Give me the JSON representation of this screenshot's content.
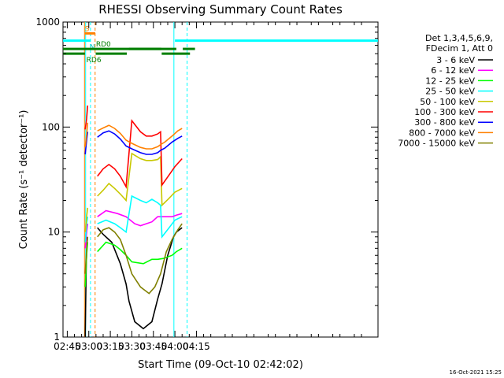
{
  "chart_data": {
    "type": "line",
    "title": "RHESSI Observing Summary Count Rates",
    "xlabel": "Start Time (09-Oct-10 02:42:02)",
    "ylabel": "Count Rate (s⁻¹ detector⁻¹)",
    "yscale": "log",
    "ylim": [
      1,
      1000
    ],
    "xlim_minutes": [
      42.03,
      261.5
    ],
    "x_ticks": [
      {
        "label": "02:45",
        "t": 45
      },
      {
        "label": "03:00",
        "t": 60
      },
      {
        "label": "03:15",
        "t": 75
      },
      {
        "label": "03:30",
        "t": 90
      },
      {
        "label": "03:45",
        "t": 105
      },
      {
        "label": "04:00",
        "t": 120
      },
      {
        "label": "04:15",
        "t": 135
      }
    ],
    "y_ticks": [
      {
        "label": "1",
        "v": 1
      },
      {
        "label": "10",
        "v": 10
      },
      {
        "label": "100",
        "v": 100
      },
      {
        "label": "1000",
        "v": 1000
      }
    ],
    "legend_header": [
      "Det 1,3,4,5,6,9,",
      "FDecim 1, Att 0"
    ],
    "legend_placement": "right",
    "series": [
      {
        "name": "3 - 6 keV",
        "color": "#000000",
        "segments": [
          [
            [
              57.5,
              1.0
            ],
            [
              58.2,
              5.0
            ],
            [
              59.0,
              9.0
            ]
          ],
          [
            [
              66.0,
              11.0
            ],
            [
              70.0,
              9.5
            ],
            [
              76.0,
              8.0
            ],
            [
              82.0,
              5.0
            ],
            [
              86.0,
              3.2
            ],
            [
              88.0,
              2.2
            ],
            [
              92.0,
              1.4
            ],
            [
              98.0,
              1.2
            ],
            [
              104.0,
              1.4
            ],
            [
              108.0,
              2.3
            ],
            [
              111.0,
              3.2
            ],
            [
              115.0,
              6.0
            ],
            [
              119.0,
              9.0
            ],
            [
              121.0,
              10.0
            ],
            [
              125.0,
              11.0
            ]
          ]
        ]
      },
      {
        "name": "6 - 12 keV",
        "color": "#ff00ff",
        "segments": [
          [
            [
              57.5,
              7.0
            ],
            [
              58.5,
              10.0
            ],
            [
              59.2,
              12.0
            ]
          ],
          [
            [
              66.0,
              14.0
            ],
            [
              72.0,
              16.0
            ],
            [
              80.0,
              15.0
            ],
            [
              86.0,
              14.0
            ],
            [
              92.0,
              12.0
            ],
            [
              96.0,
              11.5
            ],
            [
              100.0,
              12.0
            ],
            [
              104.0,
              12.5
            ],
            [
              108.0,
              14.0
            ],
            [
              112.0,
              14.0
            ],
            [
              118.0,
              14.0
            ],
            [
              121.0,
              14.5
            ],
            [
              125.0,
              15.0
            ]
          ]
        ]
      },
      {
        "name": "12 - 25 keV",
        "color": "#00ff00",
        "segments": [
          [
            [
              57.5,
              3.0
            ],
            [
              58.5,
              6.0
            ],
            [
              59.2,
              8.0
            ]
          ],
          [
            [
              66.0,
              6.5
            ],
            [
              72.0,
              8.0
            ],
            [
              78.0,
              7.5
            ],
            [
              82.0,
              6.8
            ],
            [
              86.0,
              6.0
            ],
            [
              90.0,
              5.2
            ],
            [
              98.0,
              5.0
            ],
            [
              104.0,
              5.5
            ],
            [
              108.0,
              5.5
            ],
            [
              112.0,
              5.6
            ],
            [
              118.0,
              6.0
            ],
            [
              121.0,
              6.5
            ],
            [
              125.0,
              7.0
            ]
          ]
        ]
      },
      {
        "name": "25 - 50 keV",
        "color": "#00ffff",
        "segments": [
          [
            [
              57.5,
              8.0
            ],
            [
              58.5,
              12.0
            ],
            [
              59.2,
              14.0
            ]
          ],
          [
            [
              66.0,
              12.0
            ],
            [
              72.0,
              13.0
            ],
            [
              78.0,
              12.0
            ],
            [
              82.0,
              11.0
            ],
            [
              86.0,
              10.0
            ],
            [
              90.0,
              22.0
            ],
            [
              96.0,
              20.0
            ],
            [
              100.0,
              19.0
            ],
            [
              104.0,
              20.5
            ],
            [
              108.0,
              19.0
            ],
            [
              110.0,
              18.0
            ],
            [
              111.0,
              9.0
            ],
            [
              116.0,
              11.0
            ],
            [
              120.0,
              13.0
            ],
            [
              125.0,
              14.0
            ]
          ]
        ]
      },
      {
        "name": "50 - 100 keV",
        "color": "#c8c800",
        "segments": [
          [
            [
              57.5,
              10.0
            ],
            [
              58.5,
              14.0
            ],
            [
              59.2,
              17.0
            ]
          ],
          [
            [
              66.0,
              22.0
            ],
            [
              70.0,
              25.0
            ],
            [
              74.0,
              29.0
            ],
            [
              78.0,
              26.0
            ],
            [
              82.0,
              23.0
            ],
            [
              86.0,
              20.0
            ],
            [
              90.0,
              56.0
            ],
            [
              96.0,
              50.0
            ],
            [
              100.0,
              48.0
            ],
            [
              104.0,
              48.0
            ],
            [
              108.0,
              49.0
            ],
            [
              110.0,
              52.0
            ],
            [
              111.0,
              18.0
            ],
            [
              116.0,
              21.0
            ],
            [
              120.0,
              24.0
            ],
            [
              125.0,
              26.0
            ]
          ]
        ]
      },
      {
        "name": "100 - 300 keV",
        "color": "#ff0000",
        "segments": [
          [
            [
              57.5,
              95.0
            ],
            [
              58.5,
              120.0
            ],
            [
              59.2,
              160.0
            ]
          ],
          [
            [
              66.0,
              34.0
            ],
            [
              70.0,
              40.0
            ],
            [
              74.0,
              44.0
            ],
            [
              78.0,
              40.0
            ],
            [
              82.0,
              34.0
            ],
            [
              86.0,
              27.0
            ],
            [
              90.0,
              115.0
            ],
            [
              96.0,
              90.0
            ],
            [
              100.0,
              82.0
            ],
            [
              104.0,
              82.0
            ],
            [
              108.0,
              86.0
            ],
            [
              110.0,
              90.0
            ],
            [
              111.0,
              28.0
            ],
            [
              116.0,
              35.0
            ],
            [
              120.0,
              42.0
            ],
            [
              125.0,
              50.0
            ]
          ]
        ]
      },
      {
        "name": "300 - 800 keV",
        "color": "#0000ff",
        "segments": [
          [
            [
              57.5,
              55.0
            ],
            [
              58.5,
              75.0
            ],
            [
              59.2,
              90.0
            ]
          ],
          [
            [
              66.0,
              80.0
            ],
            [
              70.0,
              88.0
            ],
            [
              74.0,
              92.0
            ],
            [
              78.0,
              86.0
            ],
            [
              82.0,
              77.0
            ],
            [
              86.0,
              66.0
            ],
            [
              90.0,
              62.0
            ],
            [
              96.0,
              57.0
            ],
            [
              100.0,
              55.0
            ],
            [
              104.0,
              55.0
            ],
            [
              108.0,
              57.0
            ],
            [
              110.0,
              60.0
            ],
            [
              113.0,
              63.0
            ],
            [
              118.0,
              72.0
            ],
            [
              122.0,
              78.0
            ],
            [
              125.0,
              82.0
            ]
          ]
        ]
      },
      {
        "name": "800 - 7000 keV",
        "color": "#ff8000",
        "segments": [
          [
            [
              57.5,
              65.0
            ],
            [
              58.5,
              85.0
            ],
            [
              59.2,
              110.0
            ]
          ],
          [
            [
              66.0,
              92.0
            ],
            [
              70.0,
              98.0
            ],
            [
              74.0,
              104.0
            ],
            [
              78.0,
              97.0
            ],
            [
              82.0,
              87.0
            ],
            [
              86.0,
              75.0
            ],
            [
              90.0,
              70.0
            ],
            [
              96.0,
              64.0
            ],
            [
              100.0,
              62.0
            ],
            [
              104.0,
              62.0
            ],
            [
              108.0,
              65.0
            ],
            [
              110.0,
              68.0
            ],
            [
              113.0,
              72.0
            ],
            [
              118.0,
              82.0
            ],
            [
              122.0,
              92.0
            ],
            [
              125.0,
              97.0
            ]
          ]
        ]
      },
      {
        "name": "7000 - 15000 keV",
        "color": "#808000",
        "segments": [
          [
            [
              57.5,
              4.0
            ],
            [
              58.5,
              7.0
            ],
            [
              59.2,
              9.0
            ]
          ],
          [
            [
              66.0,
              9.0
            ],
            [
              70.0,
              10.5
            ],
            [
              74.0,
              11.0
            ],
            [
              78.0,
              10.0
            ],
            [
              82.0,
              8.5
            ],
            [
              86.0,
              6.0
            ],
            [
              90.0,
              4.0
            ],
            [
              96.0,
              3.0
            ],
            [
              102.0,
              2.6
            ],
            [
              106.0,
              3.0
            ],
            [
              110.0,
              4.0
            ],
            [
              114.0,
              6.5
            ],
            [
              118.0,
              8.5
            ],
            [
              122.0,
              10.5
            ],
            [
              125.0,
              12.0
            ]
          ]
        ]
      }
    ],
    "flag_bars": [
      {
        "label": "S",
        "label_t": 57.2,
        "color": "#ff8000",
        "level_value": 780,
        "spans": [
          [
            57.3,
            64.5
          ]
        ]
      },
      {
        "label": "N",
        "label_t": 60.6,
        "color": "#00ffff",
        "level_value": 665,
        "spans": [
          [
            42.03,
            61.2
          ],
          [
            120.0,
            261.5
          ]
        ]
      },
      {
        "label": "RD0",
        "label_t": 65.0,
        "color": "#007f00",
        "level_value": 555,
        "spans": [
          [
            42.03,
            121.0
          ],
          [
            88.0,
            110.5
          ],
          [
            125.5,
            134.0
          ]
        ]
      },
      {
        "label": "RD6",
        "label_t": 58.3,
        "color": "#007f00",
        "level_value": 500,
        "spans": [
          [
            42.03,
            57.3
          ],
          [
            64.8,
            86.5
          ],
          [
            110.8,
            130.5
          ]
        ]
      }
    ],
    "vertical_lines": [
      {
        "t": 57.0,
        "color": "#ff8000",
        "style": "solid"
      },
      {
        "t": 57.8,
        "color": "#00ffff",
        "style": "solid"
      },
      {
        "t": 61.2,
        "color": "#00ffff",
        "style": "dashed"
      },
      {
        "t": 64.4,
        "color": "#ff8000",
        "style": "dashed"
      },
      {
        "t": 119.3,
        "color": "#00ffff",
        "style": "solid"
      },
      {
        "t": 128.5,
        "color": "#00ffff",
        "style": "dashed"
      }
    ],
    "footer_date": "16-Oct-2021 15:25"
  }
}
